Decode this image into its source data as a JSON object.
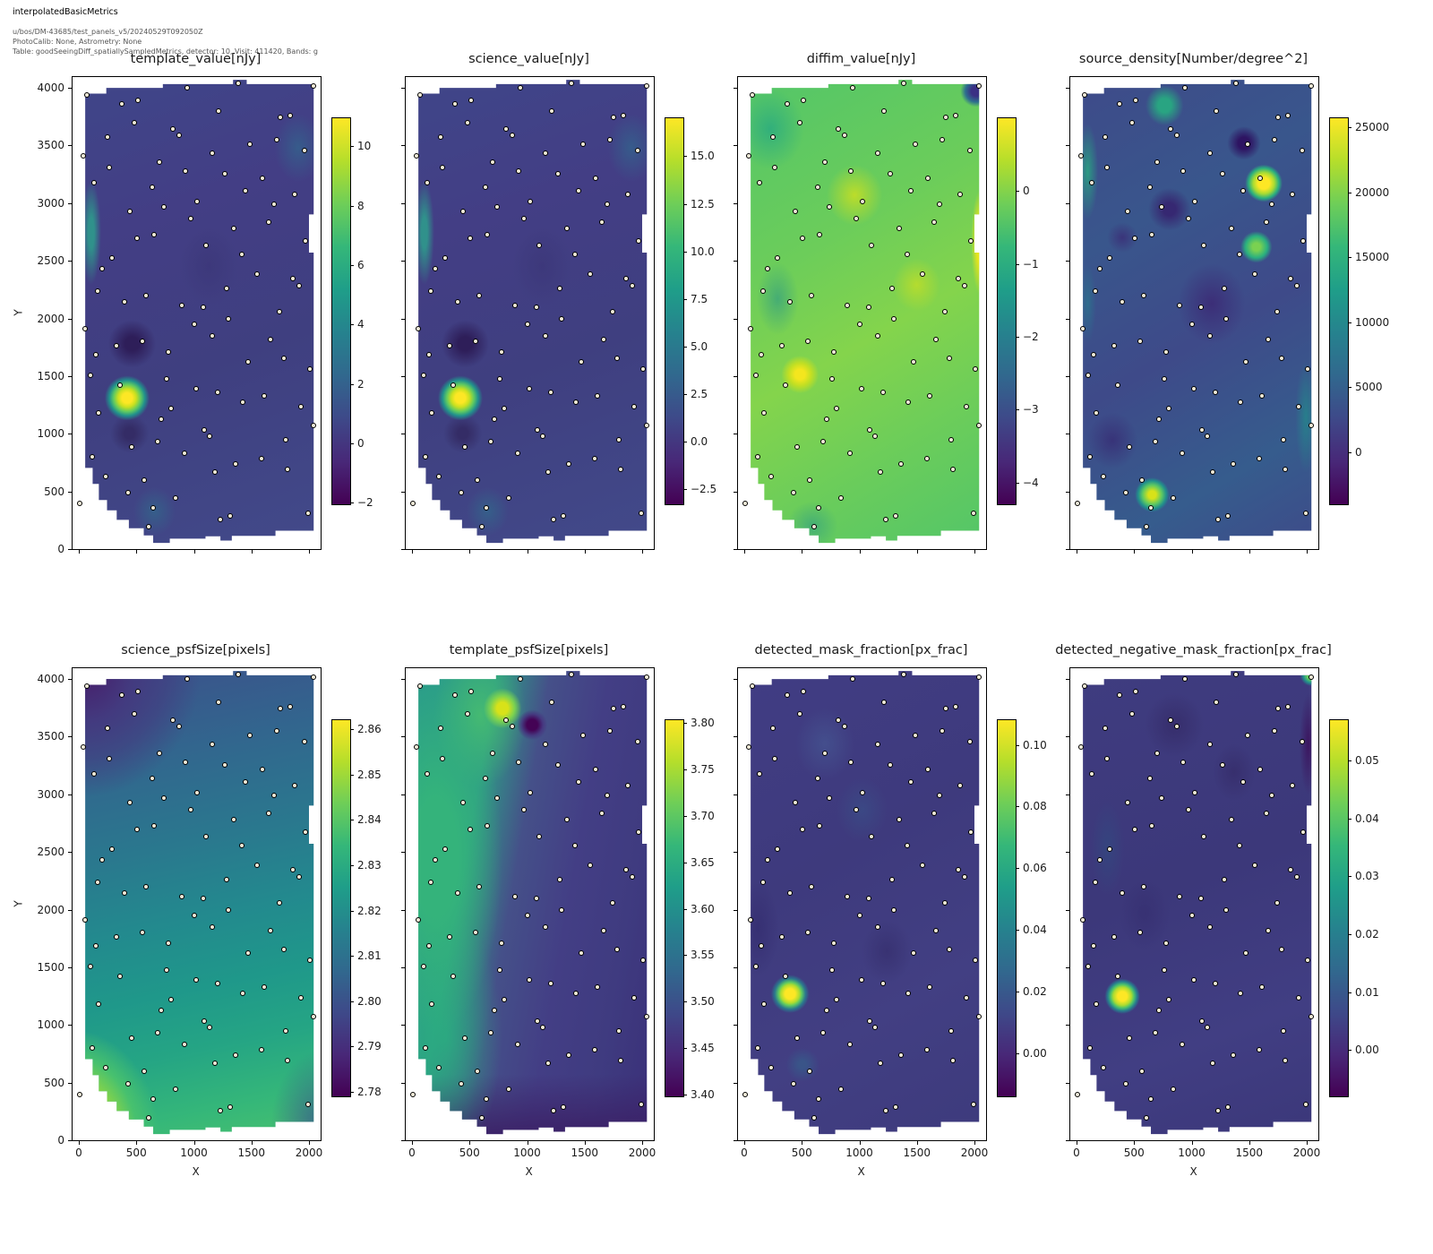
{
  "header": {
    "title": "interpolatedBasicMetrics",
    "line1": "u/bos/DM-43685/test_panels_v5/20240529T092050Z",
    "line2": "PhotoCalib: None, Astrometry: None",
    "line3": "Table: goodSeeingDiff_spatiallySampledMetrics, detector: 10, Visit: 411420, Bands: g"
  },
  "chart_data": {
    "type": "heatmap",
    "colormap": "viridis",
    "viridis_stops": [
      "#fde725",
      "#b5de2b",
      "#6ece58",
      "#35b779",
      "#1f9e89",
      "#26828e",
      "#31688e",
      "#3e4989",
      "#482878",
      "#440154"
    ],
    "layout": {
      "rows": 2,
      "cols": 4,
      "x_axis_label": "X",
      "y_axis_label": "Y",
      "x_ticks": [
        0,
        500,
        1000,
        1500,
        2000
      ],
      "y_ticks": [
        0,
        500,
        1000,
        1500,
        2000,
        2500,
        3000,
        3500,
        4000
      ],
      "x_range": [
        -54,
        2102
      ],
      "y_range": [
        -85,
        4180
      ],
      "grid": false,
      "legend": "colorbar-right-of-each-panel",
      "point_marker_color": "#f0ead8"
    },
    "sample_points": [
      [
        1385,
        4039
      ],
      [
        2040,
        4013
      ],
      [
        944,
        4002
      ],
      [
        70,
        3940
      ],
      [
        516,
        3894
      ],
      [
        374,
        3861
      ],
      [
        1212,
        3799
      ],
      [
        1753,
        3747
      ],
      [
        1839,
        3762
      ],
      [
        485,
        3695
      ],
      [
        815,
        3646
      ],
      [
        869,
        3592
      ],
      [
        249,
        3576
      ],
      [
        1489,
        3509
      ],
      [
        1720,
        3551
      ],
      [
        37,
        3406
      ],
      [
        1157,
        3432
      ],
      [
        1959,
        3457
      ],
      [
        265,
        3312
      ],
      [
        700,
        3359
      ],
      [
        928,
        3281
      ],
      [
        1271,
        3258
      ],
      [
        1598,
        3212
      ],
      [
        130,
        3173
      ],
      [
        636,
        3134
      ],
      [
        1445,
        3108
      ],
      [
        1878,
        3072
      ],
      [
        1025,
        3013
      ],
      [
        742,
        2964
      ],
      [
        441,
        2928
      ],
      [
        1699,
        2990
      ],
      [
        973,
        2866
      ],
      [
        1349,
        2780
      ],
      [
        1650,
        2832
      ],
      [
        506,
        2695
      ],
      [
        654,
        2729
      ],
      [
        1971,
        2672
      ],
      [
        1105,
        2630
      ],
      [
        1414,
        2553
      ],
      [
        1549,
        2385
      ],
      [
        290,
        2525
      ],
      [
        200,
        2432
      ],
      [
        1860,
        2346
      ],
      [
        1917,
        2282
      ],
      [
        161,
        2240
      ],
      [
        1284,
        2258
      ],
      [
        581,
        2196
      ],
      [
        397,
        2140
      ],
      [
        897,
        2111
      ],
      [
        1079,
        2095
      ],
      [
        54,
        1907
      ],
      [
        1302,
        2000
      ],
      [
        1006,
        1951
      ],
      [
        1162,
        1850
      ],
      [
        1741,
        2057
      ],
      [
        1665,
        1816
      ],
      [
        553,
        1804
      ],
      [
        327,
        1760
      ],
      [
        776,
        1705
      ],
      [
        150,
        1688
      ],
      [
        1471,
        1622
      ],
      [
        1780,
        1654
      ],
      [
        2008,
        1561
      ],
      [
        99,
        1509
      ],
      [
        356,
        1419
      ],
      [
        763,
        1473
      ],
      [
        1022,
        1390
      ],
      [
        1204,
        1362
      ],
      [
        1609,
        1326
      ],
      [
        1424,
        1274
      ],
      [
        1928,
        1233
      ],
      [
        174,
        1184
      ],
      [
        799,
        1217
      ],
      [
        716,
        1126
      ],
      [
        2036,
        1070
      ],
      [
        1092,
        1031
      ],
      [
        1136,
        977
      ],
      [
        685,
        930
      ],
      [
        1798,
        946
      ],
      [
        461,
        886
      ],
      [
        916,
        832
      ],
      [
        117,
        801
      ],
      [
        1585,
        788
      ],
      [
        1359,
        734
      ],
      [
        1183,
        667
      ],
      [
        1816,
        688
      ],
      [
        233,
        633
      ],
      [
        568,
        595
      ],
      [
        428,
        488
      ],
      [
        10,
        395
      ],
      [
        843,
        444
      ],
      [
        648,
        354
      ],
      [
        1317,
        284
      ],
      [
        1992,
        312
      ],
      [
        1232,
        253
      ],
      [
        607,
        196
      ]
    ],
    "panels": [
      {
        "title": "template_value[nJy]",
        "colorbar": {
          "min": -2.05,
          "max": 10.95,
          "tick_values": [
            10,
            8,
            6,
            4,
            2,
            0,
            -2
          ],
          "tick_labels": [
            "10",
            "8",
            "6",
            "4",
            "2",
            "0",
            "−2"
          ]
        },
        "features": [
          {
            "x": 420,
            "y": 1310,
            "value": 11,
            "desc": "bright peak"
          },
          {
            "x": 470,
            "y": 1790,
            "value": -2.5,
            "desc": "dark minimum"
          },
          {
            "x": 450,
            "y": 1000,
            "value": -2,
            "desc": "dark minimum"
          },
          {
            "x": 120,
            "y": 2750,
            "value": 3,
            "desc": "teal ridge along left edge"
          }
        ]
      },
      {
        "title": "science_value[nJy]",
        "colorbar": {
          "min": -3.3,
          "max": 17.0,
          "tick_values": [
            15,
            12.5,
            10,
            7.5,
            5,
            2.5,
            0,
            -2.5
          ],
          "tick_labels": [
            "15.0",
            "12.5",
            "10.0",
            "7.5",
            "5.0",
            "2.5",
            "0.0",
            "−2.5"
          ]
        },
        "features": [
          {
            "x": 420,
            "y": 1310,
            "value": 17,
            "desc": "bright peak"
          },
          {
            "x": 470,
            "y": 1790,
            "value": -3,
            "desc": "dark minimum"
          },
          {
            "x": 450,
            "y": 1000,
            "value": -2.5,
            "desc": "dark minimum"
          }
        ]
      },
      {
        "title": "diffim_value[nJy]",
        "colorbar": {
          "min": -4.3,
          "max": 1.0,
          "tick_values": [
            0,
            -1,
            -2,
            -3,
            -4
          ],
          "tick_labels": [
            "0",
            "−1",
            "−2",
            "−3",
            "−4"
          ]
        },
        "features": [
          {
            "x": 480,
            "y": 1520,
            "value": 0.5,
            "desc": "bright yellow patch"
          },
          {
            "x": 2035,
            "y": 2700,
            "value": 0.5,
            "desc": "yellow stripe right edge"
          },
          {
            "x": 2010,
            "y": 3980,
            "value": -4.3,
            "desc": "dark corner top-right"
          },
          {
            "x": 250,
            "y": 3650,
            "value": -1.5,
            "desc": "teal region top-left"
          }
        ]
      },
      {
        "title": "source_density[Number/degree^2]",
        "colorbar": {
          "min": -4000,
          "max": 25700,
          "tick_values": [
            25000,
            20000,
            15000,
            10000,
            5000,
            0
          ],
          "tick_labels": [
            "25000",
            "20000",
            "15000",
            "10000",
            "5000",
            "0"
          ]
        },
        "features": [
          {
            "x": 1620,
            "y": 3180,
            "value": 26000,
            "desc": "bright peak top-right"
          },
          {
            "x": 1560,
            "y": 2620,
            "value": 15000,
            "desc": "green blob"
          },
          {
            "x": 660,
            "y": 470,
            "value": 18000,
            "desc": "bright blob bottom-left"
          },
          {
            "x": 1450,
            "y": 3480,
            "value": -3000,
            "desc": "dark minimum"
          }
        ]
      },
      {
        "title": "science_psfSize[pixels]",
        "colorbar": {
          "min": 2.779,
          "max": 2.862,
          "tick_values": [
            2.86,
            2.85,
            2.84,
            2.83,
            2.82,
            2.81,
            2.8,
            2.79,
            2.78
          ],
          "tick_labels": [
            "2.86",
            "2.85",
            "2.84",
            "2.83",
            "2.82",
            "2.81",
            "2.80",
            "2.79",
            "2.78"
          ]
        },
        "features": [
          {
            "x": 50,
            "y": 300,
            "value": 2.86,
            "desc": "maximum bottom-left corner"
          },
          {
            "x": 250,
            "y": 3900,
            "value": 2.78,
            "desc": "minimum top-left corner"
          },
          {
            "x": 2000,
            "y": 2500,
            "value": 2.82,
            "desc": "smooth diagonal gradient"
          }
        ]
      },
      {
        "title": "template_psfSize[pixels]",
        "colorbar": {
          "min": 3.398,
          "max": 3.803,
          "tick_values": [
            3.8,
            3.75,
            3.7,
            3.65,
            3.6,
            3.55,
            3.5,
            3.45,
            3.4
          ],
          "tick_labels": [
            "3.80",
            "3.75",
            "3.70",
            "3.65",
            "3.60",
            "3.55",
            "3.50",
            "3.45",
            "3.40"
          ]
        },
        "features": [
          {
            "x": 40,
            "y": 2400,
            "value": 3.8,
            "desc": "bright yellow band left edge"
          },
          {
            "x": 790,
            "y": 3760,
            "value": 3.75,
            "desc": "yellow-green blob top"
          },
          {
            "x": 1060,
            "y": 3620,
            "value": 3.4,
            "desc": "dark purple spot"
          },
          {
            "x": 1500,
            "y": 1500,
            "value": 3.47,
            "desc": "dark blue right region"
          }
        ]
      },
      {
        "title": "detected_mask_fraction[px_frac]",
        "colorbar": {
          "min": -0.014,
          "max": 0.108,
          "tick_values": [
            0.1,
            0.08,
            0.06,
            0.04,
            0.02,
            0.0
          ],
          "tick_labels": [
            "0.10",
            "0.08",
            "0.06",
            "0.04",
            "0.02",
            "0.00"
          ]
        },
        "features": [
          {
            "x": 390,
            "y": 1260,
            "value": 0.11,
            "desc": "bright peak"
          },
          {
            "x": 1000,
            "y": 3400,
            "value": 0.01,
            "desc": "faint lighter region"
          }
        ]
      },
      {
        "title": "detected_negative_mask_fraction[px_frac]",
        "colorbar": {
          "min": -0.008,
          "max": 0.057,
          "tick_values": [
            0.05,
            0.04,
            0.03,
            0.02,
            0.01,
            0.0
          ],
          "tick_labels": [
            "0.05",
            "0.04",
            "0.03",
            "0.02",
            "0.01",
            "0.00"
          ]
        },
        "features": [
          {
            "x": 400,
            "y": 1250,
            "value": 0.057,
            "desc": "bright peak"
          },
          {
            "x": 2020,
            "y": 4020,
            "value": 0.04,
            "desc": "green tip top-right corner"
          }
        ]
      }
    ]
  }
}
